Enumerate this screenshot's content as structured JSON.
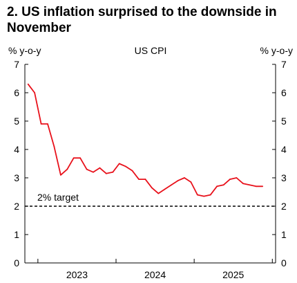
{
  "figure": {
    "title": "2. US inflation surprised to the downside in November"
  },
  "chart_data": {
    "type": "line",
    "title": "US CPI",
    "ylabel_left": "% y-o-y",
    "ylabel_right": "% y-o-y",
    "ylim": [
      0,
      7
    ],
    "yticks": [
      0,
      1,
      2,
      3,
      4,
      5,
      6,
      7
    ],
    "x_tick_labels": [
      "2023",
      "2024",
      "2025"
    ],
    "x": [
      "2022-11",
      "2022-12",
      "2023-01",
      "2023-02",
      "2023-03",
      "2023-04",
      "2023-05",
      "2023-06",
      "2023-07",
      "2023-08",
      "2023-09",
      "2023-10",
      "2023-11",
      "2023-12",
      "2024-01",
      "2024-02",
      "2024-03",
      "2024-04",
      "2024-05",
      "2024-06",
      "2024-07",
      "2024-08",
      "2024-09",
      "2024-10",
      "2024-11",
      "2024-12",
      "2025-01",
      "2025-02",
      "2025-03",
      "2025-04",
      "2025-05",
      "2025-06",
      "2025-07",
      "2025-08",
      "2025-09",
      "2025-10",
      "2025-11"
    ],
    "series": [
      {
        "name": "",
        "color": "#e8101a",
        "values": [
          6.3,
          6.0,
          4.9,
          4.9,
          4.1,
          3.1,
          3.3,
          3.7,
          3.7,
          3.3,
          3.2,
          3.35,
          3.15,
          3.2,
          3.5,
          3.4,
          3.25,
          2.95,
          2.95,
          2.65,
          2.45,
          2.6,
          2.75,
          2.9,
          3.0,
          2.85,
          2.4,
          2.35,
          2.4,
          2.7,
          2.75,
          2.95,
          3.0,
          2.8,
          2.75,
          2.7,
          2.7
        ]
      }
    ],
    "reference_line": {
      "value": 2,
      "label": "2% target",
      "style": "dashed",
      "color": "#000000"
    },
    "grid": false
  }
}
